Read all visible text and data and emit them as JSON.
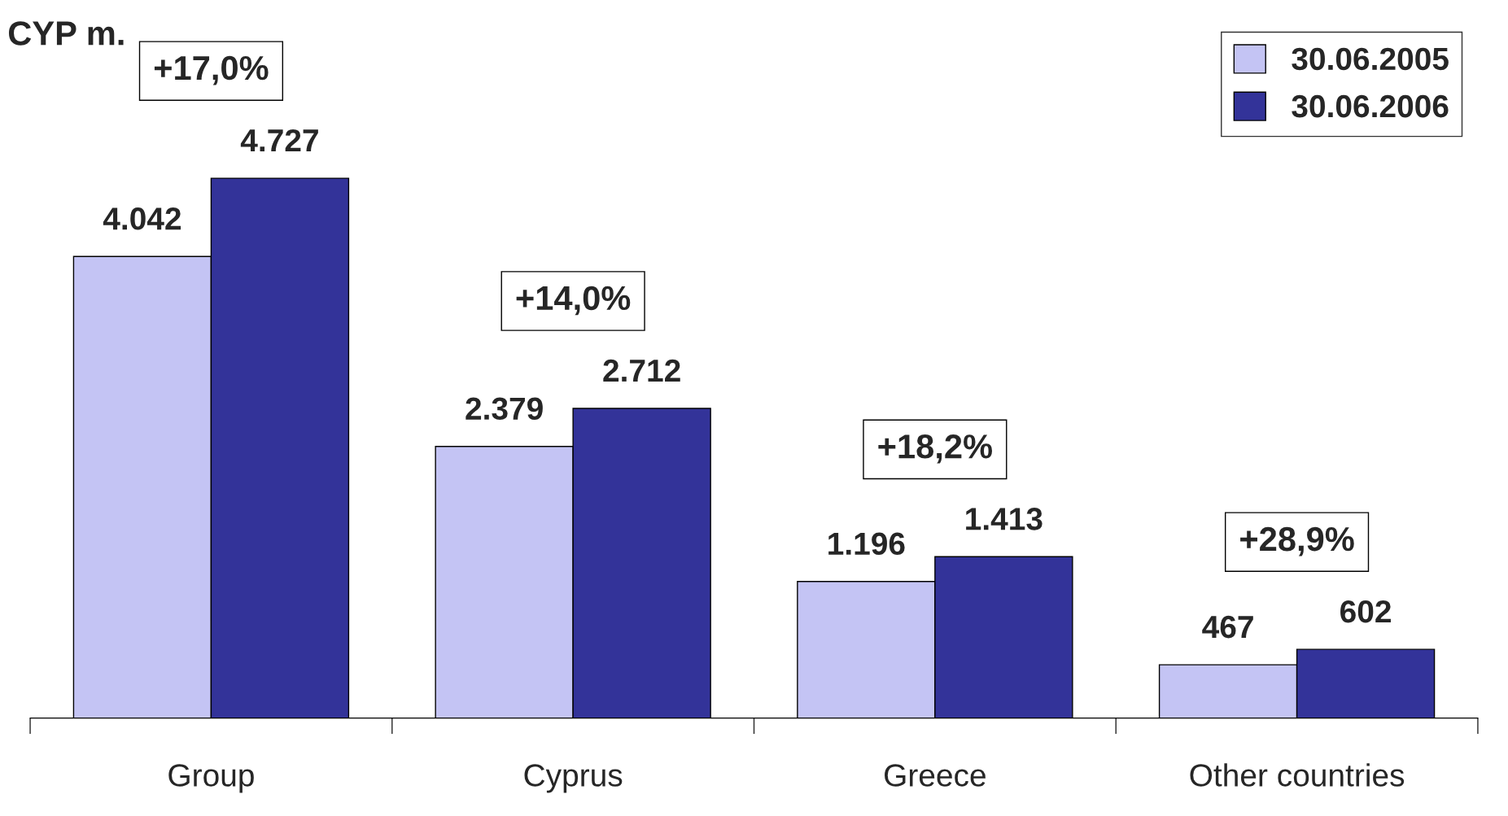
{
  "chart_data": {
    "type": "bar",
    "ylabel": "CYP m.",
    "categories": [
      "Group",
      "Cyprus",
      "Greece",
      "Other countries"
    ],
    "series": [
      {
        "name": "30.06.2005",
        "color": "#c4c4f4",
        "values": [
          4042,
          2379,
          1196,
          467
        ],
        "value_labels": [
          "4.042",
          "2.379",
          "1.196",
          "467"
        ]
      },
      {
        "name": "30.06.2006",
        "color": "#333399",
        "values": [
          4727,
          2712,
          1413,
          602
        ],
        "value_labels": [
          "4.727",
          "2.712",
          "1.413",
          "602"
        ]
      }
    ],
    "annotations": [
      "+17,0%",
      "+14,0%",
      "+18,2%",
      "+28,9%"
    ],
    "legend": "top right",
    "grid": false
  }
}
